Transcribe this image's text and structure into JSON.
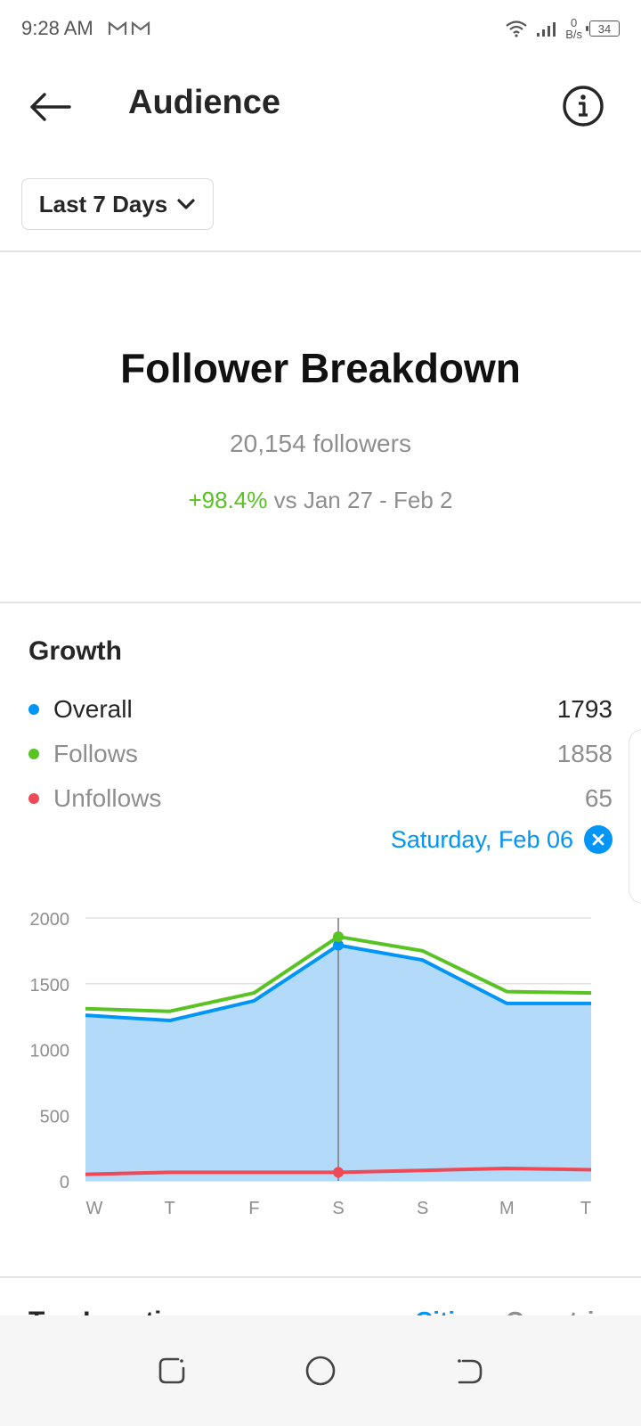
{
  "status_bar": {
    "time": "9:28 AM",
    "net_speed_value": "0",
    "net_speed_unit": "B/s",
    "battery": "34"
  },
  "header": {
    "title": "Audience"
  },
  "range": {
    "label": "Last 7 Days"
  },
  "breakdown": {
    "title": "Follower Breakdown",
    "followers": "20,154 followers",
    "change_pct": "+98.4%",
    "change_text": " vs Jan 27 - Feb 2"
  },
  "growth": {
    "title": "Growth",
    "legend": [
      {
        "label": "Overall",
        "value": "1793",
        "color": "#0095f6"
      },
      {
        "label": "Follows",
        "value": "1858",
        "color": "#58c322"
      },
      {
        "label": "Unfollows",
        "value": "65",
        "color": "#ed4956"
      }
    ],
    "selected_date": "Saturday, Feb 06"
  },
  "chart_data": {
    "type": "line",
    "categories": [
      "W",
      "T",
      "F",
      "S",
      "S",
      "M",
      "T"
    ],
    "y_ticks": [
      "0",
      "500",
      "1000",
      "1500",
      "2000"
    ],
    "ylim": [
      0,
      2000
    ],
    "grid": true,
    "selected_index": 3,
    "series": [
      {
        "name": "Overall",
        "color": "#0095f6",
        "values": [
          1260,
          1220,
          1370,
          1793,
          1680,
          1350,
          1350
        ]
      },
      {
        "name": "Follows",
        "color": "#58c322",
        "values": [
          1310,
          1290,
          1430,
          1858,
          1750,
          1440,
          1430
        ]
      },
      {
        "name": "Unfollows",
        "color": "#ed4956",
        "values": [
          50,
          65,
          65,
          65,
          80,
          95,
          85
        ]
      }
    ],
    "area_fill_color": "#b3daf9"
  },
  "locations": {
    "title": "Top Locations",
    "tabs": [
      "Cities",
      "Countries"
    ]
  }
}
